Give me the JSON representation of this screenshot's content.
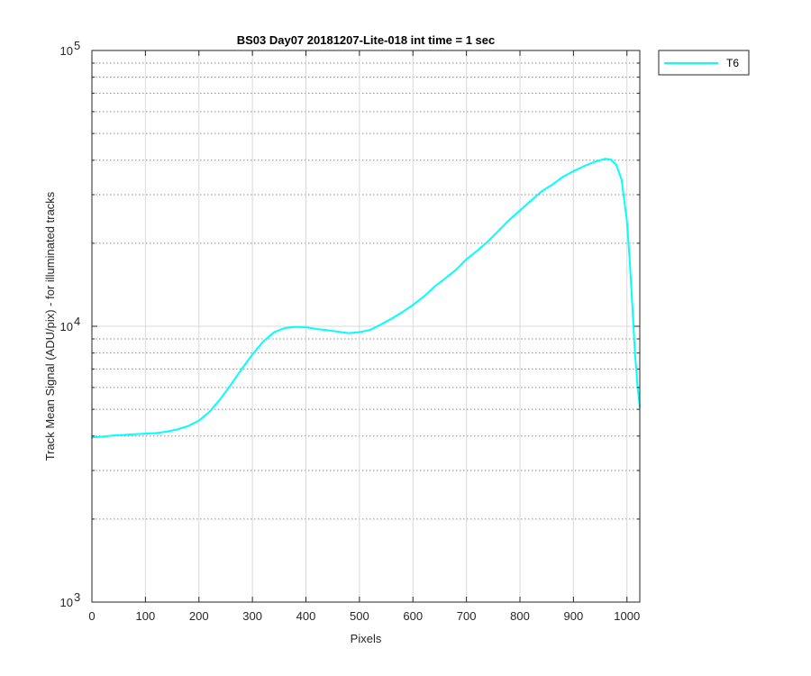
{
  "chart_data": {
    "type": "line",
    "title": "BS03 Day07 20181207-Lite-018 int time = 1 sec",
    "xlabel": "Pixels",
    "ylabel": "Track Mean Signal (ADU/pix) - for illuminated tracks",
    "xlim": [
      0,
      1024
    ],
    "ylim": [
      1000,
      100000
    ],
    "yscale": "log",
    "x_ticks": [
      0,
      100,
      200,
      300,
      400,
      500,
      600,
      700,
      800,
      900,
      1000
    ],
    "x_tick_labels": [
      "0",
      "100",
      "200",
      "300",
      "400",
      "500",
      "600",
      "700",
      "800",
      "900",
      "1000"
    ],
    "y_ticks": [
      1000,
      10000,
      100000
    ],
    "y_tick_labels": [
      {
        "base": "10",
        "exp": "3"
      },
      {
        "base": "10",
        "exp": "4"
      },
      {
        "base": "10",
        "exp": "5"
      }
    ],
    "grid": true,
    "minor_grid": true,
    "legend_position": "outside-top-right",
    "series": [
      {
        "name": "T6",
        "color": "#00ffff",
        "x": [
          0,
          20,
          40,
          60,
          80,
          100,
          120,
          140,
          160,
          180,
          200,
          220,
          240,
          260,
          280,
          300,
          320,
          340,
          360,
          380,
          400,
          420,
          440,
          460,
          480,
          500,
          520,
          540,
          560,
          580,
          600,
          620,
          640,
          660,
          680,
          700,
          720,
          740,
          760,
          780,
          800,
          820,
          840,
          860,
          880,
          900,
          920,
          940,
          960,
          970,
          980,
          990,
          1000,
          1005,
          1010,
          1015,
          1020,
          1024
        ],
        "values": [
          3950,
          3980,
          4020,
          4040,
          4060,
          4080,
          4100,
          4150,
          4230,
          4350,
          4550,
          4900,
          5450,
          6150,
          7000,
          7900,
          8800,
          9500,
          9850,
          9950,
          9920,
          9780,
          9680,
          9560,
          9440,
          9520,
          9700,
          10150,
          10650,
          11250,
          11950,
          12800,
          13900,
          14900,
          16000,
          17500,
          18800,
          20300,
          22200,
          24300,
          26300,
          28500,
          30800,
          32600,
          34800,
          36500,
          38100,
          39500,
          40500,
          40200,
          38500,
          34000,
          24000,
          17500,
          12000,
          8000,
          6000,
          5100
        ]
      }
    ]
  }
}
